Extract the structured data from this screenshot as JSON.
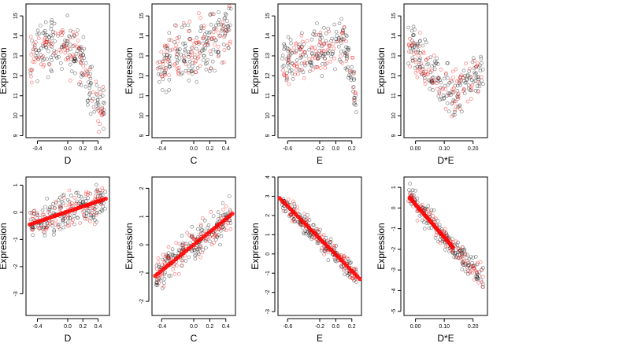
{
  "chart_data": [
    {
      "type": "scatter",
      "xlabel": "D",
      "ylabel": "Expression",
      "xlim": [
        -0.55,
        0.55
      ],
      "ylim": [
        8.9,
        15.6
      ],
      "xticks": [
        -0.4,
        0.0,
        0.2,
        0.4
      ],
      "xtick_labels": [
        "-0.4",
        "0.0",
        "0.2",
        "0.4"
      ],
      "yticks": [
        9,
        10,
        11,
        12,
        13,
        14,
        15
      ],
      "ytick_labels": [
        "9",
        "10",
        "11",
        "12",
        "13",
        "14",
        "15"
      ],
      "point_colors": [
        "#000000",
        "#ff0000"
      ],
      "fit_line": null,
      "profile": [
        [
          -0.5,
          12.9
        ],
        [
          -0.3,
          13.4
        ],
        [
          -0.15,
          13.6
        ],
        [
          0.0,
          13.5
        ],
        [
          0.1,
          13.1
        ],
        [
          0.2,
          12.6
        ],
        [
          0.3,
          11.4
        ],
        [
          0.4,
          10.7
        ],
        [
          0.5,
          10.0
        ]
      ],
      "y_spread": 1.1
    },
    {
      "type": "scatter",
      "xlabel": "C",
      "ylabel": "Expression",
      "xlim": [
        -0.52,
        0.52
      ],
      "ylim": [
        8.9,
        15.6
      ],
      "xticks": [
        -0.4,
        0.0,
        0.2,
        0.4
      ],
      "xtick_labels": [
        "-0.4",
        "0.0",
        "0.2",
        "0.4"
      ],
      "yticks": [
        9,
        10,
        11,
        12,
        13,
        14,
        15
      ],
      "ytick_labels": [
        "9",
        "10",
        "11",
        "12",
        "13",
        "14",
        "15"
      ],
      "point_colors": [
        "#000000",
        "#ff0000"
      ],
      "fit_line": null,
      "profile": [
        [
          -0.48,
          12.3
        ],
        [
          -0.3,
          12.8
        ],
        [
          -0.1,
          13.2
        ],
        [
          0.1,
          13.6
        ],
        [
          0.3,
          14.0
        ],
        [
          0.48,
          14.4
        ]
      ],
      "y_spread": 1.2
    },
    {
      "type": "scatter",
      "xlabel": "E",
      "ylabel": "Expression",
      "xlim": [
        -0.72,
        0.32
      ],
      "ylim": [
        8.9,
        15.6
      ],
      "xticks": [
        -0.6,
        -0.2,
        0.0,
        0.2
      ],
      "xtick_labels": [
        "-0.6",
        "-0.2",
        "0.0",
        "0.2"
      ],
      "yticks": [
        9,
        10,
        11,
        12,
        13,
        14,
        15
      ],
      "ytick_labels": [
        "9",
        "10",
        "11",
        "12",
        "13",
        "14",
        "15"
      ],
      "point_colors": [
        "#000000",
        "#ff0000"
      ],
      "fit_line": null,
      "profile": [
        [
          -0.7,
          12.5
        ],
        [
          -0.4,
          12.9
        ],
        [
          -0.2,
          13.2
        ],
        [
          0.0,
          13.4
        ],
        [
          0.1,
          13.6
        ],
        [
          0.2,
          12.2
        ],
        [
          0.25,
          10.6
        ],
        [
          0.3,
          11.2
        ]
      ],
      "y_spread": 1.0
    },
    {
      "type": "scatter",
      "xlabel": "D*E",
      "ylabel": "Expression",
      "xlim": [
        -0.04,
        0.25
      ],
      "ylim": [
        8.9,
        15.6
      ],
      "xticks": [
        0.0,
        0.1,
        0.2
      ],
      "xtick_labels": [
        "0.00",
        "0.10",
        "0.20"
      ],
      "yticks": [
        9,
        10,
        11,
        12,
        13,
        14,
        15
      ],
      "ytick_labels": [
        "9",
        "10",
        "11",
        "12",
        "13",
        "14",
        "15"
      ],
      "point_colors": [
        "#000000",
        "#ff0000"
      ],
      "fit_line": null,
      "profile": [
        [
          -0.02,
          13.6
        ],
        [
          0.0,
          13.3
        ],
        [
          0.03,
          12.6
        ],
        [
          0.06,
          12.0
        ],
        [
          0.1,
          11.3
        ],
        [
          0.13,
          10.9
        ],
        [
          0.2,
          12.0
        ],
        [
          0.24,
          12.2
        ]
      ],
      "y_spread": 1.0
    },
    {
      "type": "scatter",
      "xlabel": "D",
      "ylabel": "Expression",
      "xlim": [
        -0.55,
        0.55
      ],
      "ylim": [
        -3.8,
        1.3
      ],
      "xticks": [
        -0.4,
        0.0,
        0.2,
        0.4
      ],
      "xtick_labels": [
        "-0.4",
        "0.0",
        "0.2",
        "0.4"
      ],
      "yticks": [
        -3,
        -2,
        -1,
        0,
        1
      ],
      "ytick_labels": [
        "-3",
        "-2",
        "-1",
        "0",
        "1"
      ],
      "point_colors": [
        "#000000",
        "#ff0000"
      ],
      "fit_line": {
        "x": [
          -0.5,
          0.5
        ],
        "y": [
          -0.45,
          0.5
        ],
        "color": "#ff0000"
      },
      "profile": [
        [
          -0.5,
          -0.45
        ],
        [
          0.5,
          0.5
        ]
      ],
      "y_spread": 0.6
    },
    {
      "type": "scatter",
      "xlabel": "C",
      "ylabel": "Expression",
      "xlim": [
        -0.52,
        0.52
      ],
      "ylim": [
        -2.5,
        2.4
      ],
      "xticks": [
        -0.4,
        0.0,
        0.2,
        0.4
      ],
      "xtick_labels": [
        "-0.4",
        "0.0",
        "0.2",
        "0.4"
      ],
      "yticks": [
        -2,
        -1,
        0,
        1,
        2
      ],
      "ytick_labels": [
        "-2",
        "-1",
        "0",
        "1",
        "2"
      ],
      "point_colors": [
        "#000000",
        "#ff0000"
      ],
      "fit_line": {
        "x": [
          -0.48,
          0.48
        ],
        "y": [
          -1.1,
          1.1
        ],
        "color": "#ff0000"
      },
      "profile": [
        [
          -0.48,
          -1.1
        ],
        [
          0.48,
          1.1
        ]
      ],
      "y_spread": 0.5
    },
    {
      "type": "scatter",
      "xlabel": "E",
      "ylabel": "Expression",
      "xlim": [
        -0.72,
        0.32
      ],
      "ylim": [
        -3.2,
        4.0
      ],
      "xticks": [
        -0.6,
        -0.2,
        0.0,
        0.2
      ],
      "xtick_labels": [
        "-0.6",
        "-0.2",
        "0.0",
        "0.2"
      ],
      "yticks": [
        -3,
        -2,
        -1,
        0,
        1,
        2,
        3,
        4
      ],
      "ytick_labels": [
        "-3",
        "-2",
        "-1",
        "0",
        "1",
        "2",
        "3",
        "4"
      ],
      "point_colors": [
        "#000000",
        "#ff0000"
      ],
      "fit_line": {
        "x": [
          -0.7,
          0.3
        ],
        "y": [
          2.9,
          -1.3
        ],
        "color": "#ff0000"
      },
      "profile": [
        [
          -0.7,
          2.9
        ],
        [
          0.3,
          -1.3
        ]
      ],
      "y_spread": 0.45
    },
    {
      "type": "scatter",
      "xlabel": "D*E",
      "ylabel": "Expression",
      "xlim": [
        -0.04,
        0.25
      ],
      "ylim": [
        -5.2,
        1.5
      ],
      "xticks": [
        0.0,
        0.1,
        0.2
      ],
      "xtick_labels": [
        "0.00",
        "0.10",
        "0.20"
      ],
      "yticks": [
        -5,
        -4,
        -3,
        -2,
        -1,
        0,
        1
      ],
      "ytick_labels": [
        "-5",
        "-4",
        "-3",
        "-2",
        "-1",
        "0",
        "1"
      ],
      "point_colors": [
        "#000000",
        "#ff0000"
      ],
      "fit_line": {
        "x": [
          -0.02,
          0.13
        ],
        "y": [
          0.5,
          -1.9
        ],
        "color": "#ff0000"
      },
      "profile": [
        [
          -0.02,
          0.5
        ],
        [
          0.13,
          -1.9
        ],
        [
          0.24,
          -3.5
        ]
      ],
      "y_spread": 0.5
    }
  ]
}
